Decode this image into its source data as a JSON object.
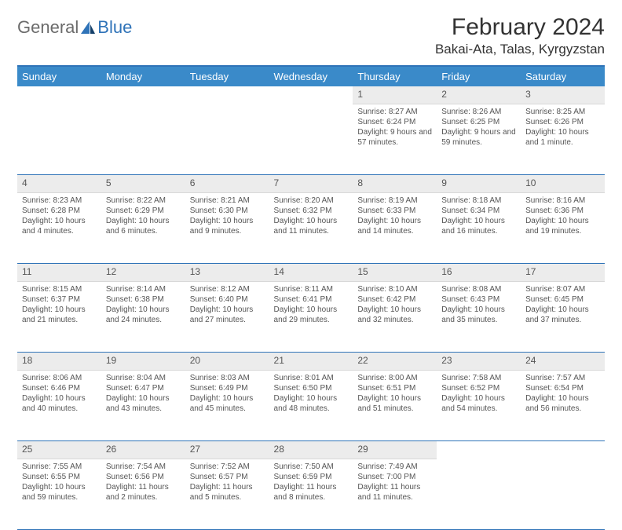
{
  "brand": {
    "part1": "General",
    "part2": "Blue"
  },
  "title": "February 2024",
  "location": "Bakai-Ata, Talas, Kyrgyzstan",
  "colors": {
    "header_bg": "#3a8ac9",
    "border": "#2f73b8",
    "daynum_bg": "#ececec",
    "text": "#555555",
    "brand_gray": "#6b6b6b",
    "brand_blue": "#2f73b8"
  },
  "day_headers": [
    "Sunday",
    "Monday",
    "Tuesday",
    "Wednesday",
    "Thursday",
    "Friday",
    "Saturday"
  ],
  "weeks": [
    [
      null,
      null,
      null,
      null,
      {
        "n": "1",
        "sunrise": "8:27 AM",
        "sunset": "6:24 PM",
        "daylight": "9 hours and 57 minutes."
      },
      {
        "n": "2",
        "sunrise": "8:26 AM",
        "sunset": "6:25 PM",
        "daylight": "9 hours and 59 minutes."
      },
      {
        "n": "3",
        "sunrise": "8:25 AM",
        "sunset": "6:26 PM",
        "daylight": "10 hours and 1 minute."
      }
    ],
    [
      {
        "n": "4",
        "sunrise": "8:23 AM",
        "sunset": "6:28 PM",
        "daylight": "10 hours and 4 minutes."
      },
      {
        "n": "5",
        "sunrise": "8:22 AM",
        "sunset": "6:29 PM",
        "daylight": "10 hours and 6 minutes."
      },
      {
        "n": "6",
        "sunrise": "8:21 AM",
        "sunset": "6:30 PM",
        "daylight": "10 hours and 9 minutes."
      },
      {
        "n": "7",
        "sunrise": "8:20 AM",
        "sunset": "6:32 PM",
        "daylight": "10 hours and 11 minutes."
      },
      {
        "n": "8",
        "sunrise": "8:19 AM",
        "sunset": "6:33 PM",
        "daylight": "10 hours and 14 minutes."
      },
      {
        "n": "9",
        "sunrise": "8:18 AM",
        "sunset": "6:34 PM",
        "daylight": "10 hours and 16 minutes."
      },
      {
        "n": "10",
        "sunrise": "8:16 AM",
        "sunset": "6:36 PM",
        "daylight": "10 hours and 19 minutes."
      }
    ],
    [
      {
        "n": "11",
        "sunrise": "8:15 AM",
        "sunset": "6:37 PM",
        "daylight": "10 hours and 21 minutes."
      },
      {
        "n": "12",
        "sunrise": "8:14 AM",
        "sunset": "6:38 PM",
        "daylight": "10 hours and 24 minutes."
      },
      {
        "n": "13",
        "sunrise": "8:12 AM",
        "sunset": "6:40 PM",
        "daylight": "10 hours and 27 minutes."
      },
      {
        "n": "14",
        "sunrise": "8:11 AM",
        "sunset": "6:41 PM",
        "daylight": "10 hours and 29 minutes."
      },
      {
        "n": "15",
        "sunrise": "8:10 AM",
        "sunset": "6:42 PM",
        "daylight": "10 hours and 32 minutes."
      },
      {
        "n": "16",
        "sunrise": "8:08 AM",
        "sunset": "6:43 PM",
        "daylight": "10 hours and 35 minutes."
      },
      {
        "n": "17",
        "sunrise": "8:07 AM",
        "sunset": "6:45 PM",
        "daylight": "10 hours and 37 minutes."
      }
    ],
    [
      {
        "n": "18",
        "sunrise": "8:06 AM",
        "sunset": "6:46 PM",
        "daylight": "10 hours and 40 minutes."
      },
      {
        "n": "19",
        "sunrise": "8:04 AM",
        "sunset": "6:47 PM",
        "daylight": "10 hours and 43 minutes."
      },
      {
        "n": "20",
        "sunrise": "8:03 AM",
        "sunset": "6:49 PM",
        "daylight": "10 hours and 45 minutes."
      },
      {
        "n": "21",
        "sunrise": "8:01 AM",
        "sunset": "6:50 PM",
        "daylight": "10 hours and 48 minutes."
      },
      {
        "n": "22",
        "sunrise": "8:00 AM",
        "sunset": "6:51 PM",
        "daylight": "10 hours and 51 minutes."
      },
      {
        "n": "23",
        "sunrise": "7:58 AM",
        "sunset": "6:52 PM",
        "daylight": "10 hours and 54 minutes."
      },
      {
        "n": "24",
        "sunrise": "7:57 AM",
        "sunset": "6:54 PM",
        "daylight": "10 hours and 56 minutes."
      }
    ],
    [
      {
        "n": "25",
        "sunrise": "7:55 AM",
        "sunset": "6:55 PM",
        "daylight": "10 hours and 59 minutes."
      },
      {
        "n": "26",
        "sunrise": "7:54 AM",
        "sunset": "6:56 PM",
        "daylight": "11 hours and 2 minutes."
      },
      {
        "n": "27",
        "sunrise": "7:52 AM",
        "sunset": "6:57 PM",
        "daylight": "11 hours and 5 minutes."
      },
      {
        "n": "28",
        "sunrise": "7:50 AM",
        "sunset": "6:59 PM",
        "daylight": "11 hours and 8 minutes."
      },
      {
        "n": "29",
        "sunrise": "7:49 AM",
        "sunset": "7:00 PM",
        "daylight": "11 hours and 11 minutes."
      },
      null,
      null
    ]
  ],
  "labels": {
    "sunrise": "Sunrise:",
    "sunset": "Sunset:",
    "daylight": "Daylight:"
  }
}
